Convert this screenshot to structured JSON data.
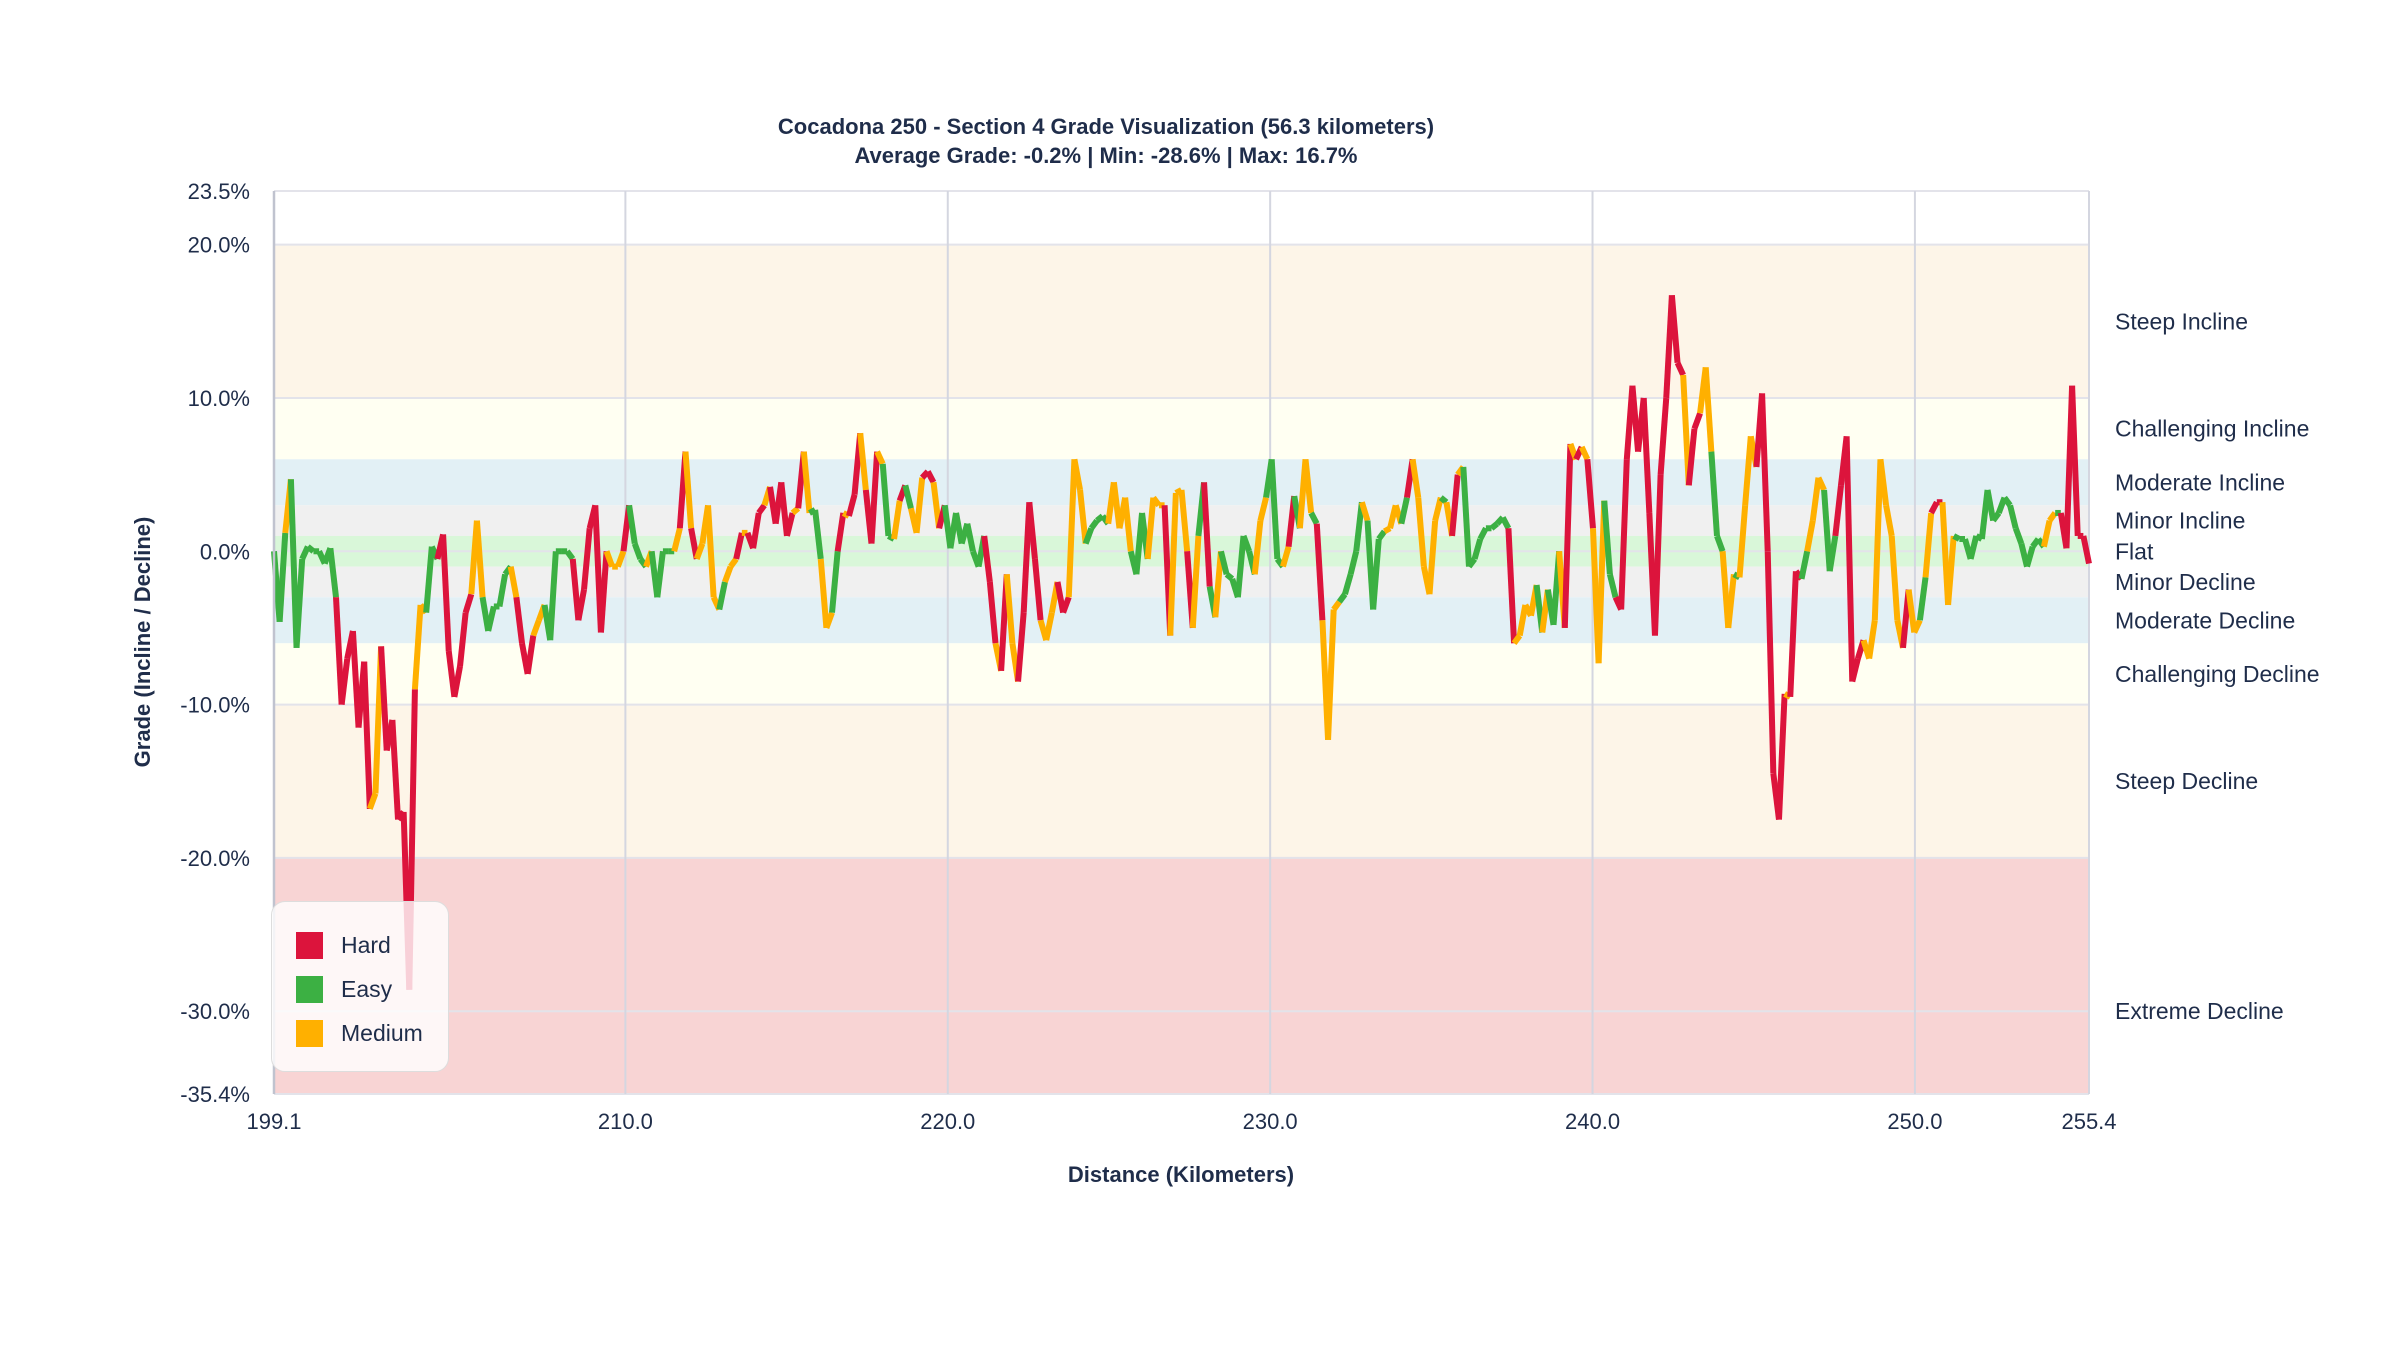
{
  "chart_data": {
    "type": "line",
    "title": "Cocadona 250 - Section 4 Grade Visualization (56.3 kilometers)",
    "subtitle": "Average Grade: -0.2% | Min: -28.6% | Max: 16.7%",
    "xlabel": "Distance (Kilometers)",
    "ylabel": "Grade (Incline / Decline)",
    "xlim": [
      199.1,
      255.4
    ],
    "ylim": [
      -35.4,
      23.5
    ],
    "x_ticks": [
      "199.1",
      "210.0",
      "220.0",
      "230.0",
      "240.0",
      "250.0",
      "255.4"
    ],
    "x_tick_values": [
      199.1,
      210,
      220,
      230,
      240,
      250,
      255.4
    ],
    "y_ticks": [
      "23.5%",
      "20.0%",
      "10.0%",
      "0.0%",
      "-10.0%",
      "-20.0%",
      "-30.0%",
      "-35.4%"
    ],
    "y_tick_values": [
      23.5,
      20,
      10,
      0,
      -10,
      -20,
      -30,
      -35.4
    ],
    "grid": true,
    "legend_position": "bottom-left",
    "legend": [
      {
        "key": "H",
        "name": "Hard",
        "color": "#dc143c"
      },
      {
        "key": "E",
        "name": "Easy",
        "color": "#3cb043"
      },
      {
        "key": "M",
        "name": "Medium",
        "color": "#ffb000"
      }
    ],
    "zones": [
      {
        "name": "Steep Incline",
        "from": 10,
        "to": 20,
        "label_at": 15,
        "color": "#fdf5e8"
      },
      {
        "name": "Challenging Incline",
        "from": 6,
        "to": 10,
        "label_at": 8,
        "color": "#fffff2"
      },
      {
        "name": "Moderate Incline",
        "from": 3,
        "to": 6,
        "label_at": 4.5,
        "color": "#e2f0f5"
      },
      {
        "name": "Minor Incline",
        "from": 1,
        "to": 3,
        "label_at": 2,
        "color": "#f0f0f0"
      },
      {
        "name": "Flat",
        "from": -1,
        "to": 1,
        "label_at": 0,
        "color": "#d9f7d9"
      },
      {
        "name": "Minor Decline",
        "from": -3,
        "to": -1,
        "label_at": -2,
        "color": "#f0f0f0"
      },
      {
        "name": "Moderate Decline",
        "from": -6,
        "to": -3,
        "label_at": -4.5,
        "color": "#e2f0f5"
      },
      {
        "name": "Challenging Decline",
        "from": -10,
        "to": -6,
        "label_at": -8,
        "color": "#fffff2"
      },
      {
        "name": "Steep Decline",
        "from": -20,
        "to": -10,
        "label_at": -15,
        "color": "#fdf5e8"
      },
      {
        "name": "Extreme Decline",
        "from": -35.4,
        "to": -20,
        "label_at": -30,
        "color": "#f8d4d4"
      }
    ],
    "series_points": [
      [
        0,
        "H"
      ],
      [
        -4.6,
        "E"
      ],
      [
        1.2,
        "E"
      ],
      [
        4.7,
        "M"
      ],
      [
        -6.3,
        "E"
      ],
      [
        -0.5,
        "E"
      ],
      [
        0.3,
        "E"
      ],
      [
        0,
        "E"
      ],
      [
        0,
        "E"
      ],
      [
        -0.8,
        "E"
      ],
      [
        0.2,
        "E"
      ],
      [
        -3,
        "E"
      ],
      [
        -10,
        "H"
      ],
      [
        -7,
        "H"
      ],
      [
        -5.2,
        "H"
      ],
      [
        -11.5,
        "H"
      ],
      [
        -7.2,
        "H"
      ],
      [
        -16.8,
        "H"
      ],
      [
        -15.8,
        "M"
      ],
      [
        -6.2,
        "M"
      ],
      [
        -13,
        "H"
      ],
      [
        -11,
        "H"
      ],
      [
        -17.5,
        "H"
      ],
      [
        -17,
        "H"
      ],
      [
        -28.6,
        "H"
      ],
      [
        -9,
        "H"
      ],
      [
        -3.5,
        "M"
      ],
      [
        -4,
        "M"
      ],
      [
        0.3,
        "E"
      ],
      [
        -0.5,
        "E"
      ],
      [
        1.1,
        "H"
      ],
      [
        -6.5,
        "H"
      ],
      [
        -9.5,
        "H"
      ],
      [
        -7.5,
        "H"
      ],
      [
        -4,
        "H"
      ],
      [
        -2.8,
        "H"
      ],
      [
        2,
        "M"
      ],
      [
        -3,
        "M"
      ],
      [
        -5.2,
        "E"
      ],
      [
        -3.6,
        "E"
      ],
      [
        -3.6,
        "E"
      ],
      [
        -1.5,
        "E"
      ],
      [
        -1,
        "E"
      ],
      [
        -3,
        "M"
      ],
      [
        -6,
        "H"
      ],
      [
        -8,
        "H"
      ],
      [
        -5.5,
        "H"
      ],
      [
        -4.5,
        "M"
      ],
      [
        -3.5,
        "M"
      ],
      [
        -5.8,
        "E"
      ],
      [
        0,
        "E"
      ],
      [
        0,
        "E"
      ],
      [
        0,
        "E"
      ],
      [
        -0.5,
        "E"
      ],
      [
        -4.5,
        "H"
      ],
      [
        -2.5,
        "H"
      ],
      [
        1.5,
        "H"
      ],
      [
        3,
        "H"
      ],
      [
        -5.3,
        "H"
      ],
      [
        0,
        "H"
      ],
      [
        -1,
        "M"
      ],
      [
        -1,
        "M"
      ],
      [
        0,
        "M"
      ],
      [
        3,
        "H"
      ],
      [
        0.5,
        "E"
      ],
      [
        -0.5,
        "E"
      ],
      [
        -1,
        "E"
      ],
      [
        0,
        "M"
      ],
      [
        -3,
        "E"
      ],
      [
        0,
        "E"
      ],
      [
        0,
        "E"
      ],
      [
        0,
        "E"
      ],
      [
        1.5,
        "M"
      ],
      [
        6.5,
        "H"
      ],
      [
        1.5,
        "M"
      ],
      [
        -0.5,
        "H"
      ],
      [
        0.5,
        "M"
      ],
      [
        3,
        "M"
      ],
      [
        -3,
        "M"
      ],
      [
        -3.8,
        "M"
      ],
      [
        -2,
        "E"
      ],
      [
        -1,
        "M"
      ],
      [
        -0.5,
        "M"
      ],
      [
        1.2,
        "H"
      ],
      [
        1.2,
        "M"
      ],
      [
        0.2,
        "H"
      ],
      [
        2.5,
        "H"
      ],
      [
        3,
        "H"
      ],
      [
        4.2,
        "M"
      ],
      [
        1.8,
        "H"
      ],
      [
        4.5,
        "H"
      ],
      [
        1,
        "H"
      ],
      [
        2.5,
        "H"
      ],
      [
        2.8,
        "M"
      ],
      [
        6.5,
        "H"
      ],
      [
        2.5,
        "M"
      ],
      [
        2.7,
        "E"
      ],
      [
        -0.5,
        "E"
      ],
      [
        -5,
        "M"
      ],
      [
        -4,
        "M"
      ],
      [
        0,
        "E"
      ],
      [
        2.5,
        "H"
      ],
      [
        2.3,
        "M"
      ],
      [
        3.7,
        "H"
      ],
      [
        7.7,
        "H"
      ],
      [
        4,
        "M"
      ],
      [
        0.5,
        "H"
      ],
      [
        6.5,
        "H"
      ],
      [
        5.7,
        "M"
      ],
      [
        1,
        "E"
      ],
      [
        0.8,
        "E"
      ],
      [
        3.3,
        "M"
      ],
      [
        4.3,
        "H"
      ],
      [
        2.8,
        "E"
      ],
      [
        1.2,
        "M"
      ],
      [
        4.8,
        "M"
      ],
      [
        5.2,
        "H"
      ],
      [
        4.5,
        "H"
      ],
      [
        1.5,
        "M"
      ],
      [
        3,
        "H"
      ],
      [
        0.2,
        "E"
      ],
      [
        2.5,
        "E"
      ],
      [
        0.5,
        "E"
      ],
      [
        1.8,
        "E"
      ],
      [
        0,
        "E"
      ],
      [
        -1,
        "E"
      ],
      [
        1,
        "E"
      ],
      [
        -2,
        "H"
      ],
      [
        -6,
        "H"
      ],
      [
        -7.8,
        "M"
      ],
      [
        -1.5,
        "H"
      ],
      [
        -6,
        "M"
      ],
      [
        -8.5,
        "M"
      ],
      [
        -4,
        "H"
      ],
      [
        3.2,
        "H"
      ],
      [
        -0.5,
        "H"
      ],
      [
        -4.5,
        "H"
      ],
      [
        -5.8,
        "M"
      ],
      [
        -4,
        "M"
      ],
      [
        -2,
        "M"
      ],
      [
        -4,
        "H"
      ],
      [
        -3,
        "H"
      ],
      [
        6,
        "M"
      ],
      [
        4,
        "M"
      ],
      [
        0.5,
        "M"
      ],
      [
        1.5,
        "E"
      ],
      [
        2,
        "E"
      ],
      [
        2.3,
        "E"
      ],
      [
        1.8,
        "E"
      ],
      [
        4.5,
        "M"
      ],
      [
        1.5,
        "M"
      ],
      [
        3.5,
        "M"
      ],
      [
        0,
        "M"
      ],
      [
        -1.5,
        "E"
      ],
      [
        2.5,
        "E"
      ],
      [
        -0.5,
        "E"
      ],
      [
        3.5,
        "M"
      ],
      [
        3,
        "M"
      ],
      [
        3,
        "M"
      ],
      [
        -5.5,
        "H"
      ],
      [
        3.8,
        "M"
      ],
      [
        4,
        "M"
      ],
      [
        0,
        "M"
      ],
      [
        -5,
        "H"
      ],
      [
        1,
        "M"
      ],
      [
        4.5,
        "E"
      ],
      [
        -2.3,
        "H"
      ],
      [
        -4.3,
        "E"
      ],
      [
        0,
        "M"
      ],
      [
        -1.5,
        "E"
      ],
      [
        -1.8,
        "E"
      ],
      [
        -3,
        "E"
      ],
      [
        1,
        "E"
      ],
      [
        0,
        "E"
      ],
      [
        -1.5,
        "E"
      ],
      [
        2,
        "M"
      ],
      [
        3.5,
        "M"
      ],
      [
        6,
        "E"
      ],
      [
        -0.5,
        "E"
      ],
      [
        -1,
        "E"
      ],
      [
        0.3,
        "M"
      ],
      [
        3.6,
        "H"
      ],
      [
        1.5,
        "E"
      ],
      [
        6,
        "M"
      ],
      [
        2.5,
        "M"
      ],
      [
        1.8,
        "E"
      ],
      [
        -4.5,
        "H"
      ],
      [
        -12.3,
        "M"
      ],
      [
        -3.8,
        "M"
      ],
      [
        -3.3,
        "M"
      ],
      [
        -2.8,
        "E"
      ],
      [
        -1.5,
        "E"
      ],
      [
        0,
        "E"
      ],
      [
        3.2,
        "E"
      ],
      [
        2,
        "M"
      ],
      [
        -3.8,
        "E"
      ],
      [
        0.8,
        "E"
      ],
      [
        1.3,
        "E"
      ],
      [
        1.5,
        "M"
      ],
      [
        3,
        "M"
      ],
      [
        1.8,
        "M"
      ],
      [
        3.5,
        "E"
      ],
      [
        6,
        "H"
      ],
      [
        3.5,
        "M"
      ],
      [
        -1,
        "M"
      ],
      [
        -2.8,
        "M"
      ],
      [
        2,
        "M"
      ],
      [
        3.5,
        "M"
      ],
      [
        3.2,
        "E"
      ],
      [
        1,
        "M"
      ],
      [
        5,
        "H"
      ],
      [
        5.5,
        "M"
      ],
      [
        -1,
        "E"
      ],
      [
        -0.5,
        "E"
      ],
      [
        0.8,
        "E"
      ],
      [
        1.5,
        "E"
      ],
      [
        1.5,
        "E"
      ],
      [
        1.8,
        "E"
      ],
      [
        2.2,
        "E"
      ],
      [
        1.5,
        "E"
      ],
      [
        -6,
        "H"
      ],
      [
        -5.5,
        "M"
      ],
      [
        -3.5,
        "M"
      ],
      [
        -4.2,
        "M"
      ],
      [
        -2.2,
        "M"
      ],
      [
        -5.3,
        "E"
      ],
      [
        -2.5,
        "M"
      ],
      [
        -4.8,
        "E"
      ],
      [
        0,
        "E"
      ],
      [
        -5,
        "M"
      ],
      [
        7,
        "H"
      ],
      [
        6,
        "M"
      ],
      [
        6.8,
        "H"
      ],
      [
        6,
        "M"
      ],
      [
        1.5,
        "H"
      ],
      [
        -7.3,
        "M"
      ],
      [
        3.3,
        "M"
      ],
      [
        -1.5,
        "E"
      ],
      [
        -3,
        "E"
      ],
      [
        -3.8,
        "H"
      ],
      [
        6,
        "H"
      ],
      [
        10.8,
        "H"
      ],
      [
        6.5,
        "H"
      ],
      [
        10,
        "H"
      ],
      [
        2.5,
        "H"
      ],
      [
        -5.5,
        "H"
      ],
      [
        5,
        "H"
      ],
      [
        10,
        "H"
      ],
      [
        16.7,
        "H"
      ],
      [
        12.3,
        "H"
      ],
      [
        11.5,
        "H"
      ],
      [
        4.3,
        "M"
      ],
      [
        8,
        "H"
      ],
      [
        9,
        "H"
      ],
      [
        12,
        "M"
      ],
      [
        6.5,
        "M"
      ],
      [
        1,
        "E"
      ],
      [
        0,
        "E"
      ],
      [
        -5,
        "M"
      ],
      [
        -1.5,
        "M"
      ],
      [
        -1.7,
        "E"
      ],
      [
        3,
        "M"
      ],
      [
        7.5,
        "M"
      ],
      [
        5.5,
        "M"
      ],
      [
        10.3,
        "H"
      ],
      [
        0,
        "H"
      ],
      [
        -14.5,
        "H"
      ],
      [
        -17.5,
        "H"
      ],
      [
        -9.3,
        "H"
      ],
      [
        -9.5,
        "M"
      ],
      [
        -1.3,
        "H"
      ],
      [
        -1.8,
        "H"
      ],
      [
        0,
        "E"
      ],
      [
        2,
        "M"
      ],
      [
        4.8,
        "M"
      ],
      [
        4,
        "M"
      ],
      [
        -1.3,
        "E"
      ],
      [
        1,
        "E"
      ],
      [
        4.3,
        "H"
      ],
      [
        7.5,
        "H"
      ],
      [
        -8.5,
        "H"
      ],
      [
        -7,
        "H"
      ],
      [
        -5.8,
        "H"
      ],
      [
        -7,
        "M"
      ],
      [
        -4.5,
        "M"
      ],
      [
        6,
        "M"
      ],
      [
        3,
        "M"
      ],
      [
        1,
        "M"
      ],
      [
        -4.5,
        "M"
      ],
      [
        -6.3,
        "M"
      ],
      [
        -2.5,
        "H"
      ],
      [
        -5.3,
        "M"
      ],
      [
        -4.5,
        "M"
      ],
      [
        -1.7,
        "E"
      ],
      [
        2.5,
        "M"
      ],
      [
        3.2,
        "H"
      ],
      [
        3.2,
        "H"
      ],
      [
        -3.5,
        "M"
      ],
      [
        1,
        "M"
      ],
      [
        0.8,
        "E"
      ],
      [
        0.8,
        "E"
      ],
      [
        -0.5,
        "E"
      ],
      [
        1,
        "E"
      ],
      [
        0.8,
        "E"
      ],
      [
        4,
        "E"
      ],
      [
        2,
        "E"
      ],
      [
        2.5,
        "E"
      ],
      [
        3.5,
        "E"
      ],
      [
        3,
        "E"
      ],
      [
        1.5,
        "E"
      ],
      [
        0.5,
        "E"
      ],
      [
        -1,
        "E"
      ],
      [
        0.3,
        "E"
      ],
      [
        0.8,
        "E"
      ],
      [
        0.3,
        "E"
      ],
      [
        2,
        "M"
      ],
      [
        2.5,
        "M"
      ],
      [
        2.5,
        "E"
      ],
      [
        0.2,
        "H"
      ],
      [
        10.8,
        "H"
      ],
      [
        1,
        "H"
      ],
      [
        1,
        "H"
      ],
      [
        -0.8,
        "H"
      ]
    ]
  }
}
